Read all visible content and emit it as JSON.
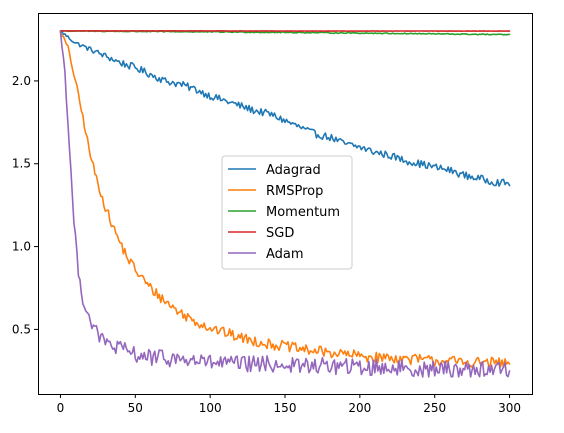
{
  "chart_data": {
    "type": "line",
    "title": "",
    "xlabel": "",
    "ylabel": "",
    "xlim": [
      -15,
      315
    ],
    "ylim": [
      0.11,
      2.41
    ],
    "x_ticks": [
      0,
      50,
      100,
      150,
      200,
      250,
      300
    ],
    "x_tick_labels": [
      "0",
      "50",
      "100",
      "150",
      "200",
      "250",
      "300"
    ],
    "y_ticks": [
      0.5,
      1.0,
      1.5,
      2.0
    ],
    "y_tick_labels": [
      "0.5",
      "1.0",
      "1.5",
      "2.0"
    ],
    "grid": false,
    "legend_position": "center",
    "series": [
      {
        "name": "Adagrad",
        "color": "#1f77b4",
        "x": [
          0,
          10,
          20,
          30,
          40,
          50,
          60,
          70,
          80,
          90,
          100,
          110,
          120,
          130,
          140,
          150,
          160,
          170,
          180,
          190,
          200,
          210,
          220,
          230,
          240,
          250,
          260,
          270,
          280,
          290,
          300
        ],
        "y": [
          2.3,
          2.23,
          2.19,
          2.15,
          2.11,
          2.08,
          2.04,
          2.0,
          1.98,
          1.95,
          1.91,
          1.88,
          1.85,
          1.82,
          1.8,
          1.76,
          1.72,
          1.68,
          1.66,
          1.62,
          1.6,
          1.57,
          1.55,
          1.52,
          1.5,
          1.48,
          1.46,
          1.43,
          1.41,
          1.39,
          1.38
        ]
      },
      {
        "name": "RMSProp",
        "color": "#ff7f0e",
        "x": [
          0,
          5,
          10,
          15,
          20,
          25,
          30,
          35,
          40,
          45,
          50,
          60,
          70,
          80,
          90,
          100,
          110,
          120,
          130,
          140,
          150,
          160,
          170,
          180,
          190,
          200,
          210,
          220,
          230,
          240,
          250,
          260,
          270,
          280,
          290,
          300
        ],
        "y": [
          2.3,
          2.2,
          2.0,
          1.78,
          1.55,
          1.38,
          1.24,
          1.12,
          1.02,
          0.93,
          0.86,
          0.75,
          0.67,
          0.6,
          0.55,
          0.51,
          0.48,
          0.45,
          0.43,
          0.41,
          0.4,
          0.38,
          0.37,
          0.36,
          0.35,
          0.34,
          0.33,
          0.33,
          0.32,
          0.32,
          0.31,
          0.31,
          0.3,
          0.3,
          0.3,
          0.29
        ]
      },
      {
        "name": "Momentum",
        "color": "#2ca02c",
        "x": [
          0,
          50,
          100,
          150,
          200,
          250,
          300
        ],
        "y": [
          2.301,
          2.299,
          2.296,
          2.293,
          2.289,
          2.284,
          2.279
        ]
      },
      {
        "name": "SGD",
        "color": "#d62728",
        "x": [
          0,
          50,
          100,
          150,
          200,
          250,
          300
        ],
        "y": [
          2.302,
          2.302,
          2.302,
          2.301,
          2.301,
          2.301,
          2.301
        ]
      },
      {
        "name": "Adam",
        "color": "#9467bd",
        "x": [
          0,
          3,
          6,
          9,
          12,
          15,
          20,
          25,
          30,
          40,
          50,
          60,
          80,
          100,
          120,
          140,
          160,
          180,
          200,
          220,
          240,
          260,
          280,
          300
        ],
        "y": [
          2.3,
          2.05,
          1.6,
          1.15,
          0.85,
          0.68,
          0.55,
          0.47,
          0.42,
          0.38,
          0.35,
          0.33,
          0.32,
          0.3,
          0.29,
          0.29,
          0.28,
          0.28,
          0.27,
          0.27,
          0.26,
          0.26,
          0.26,
          0.26
        ]
      }
    ]
  }
}
